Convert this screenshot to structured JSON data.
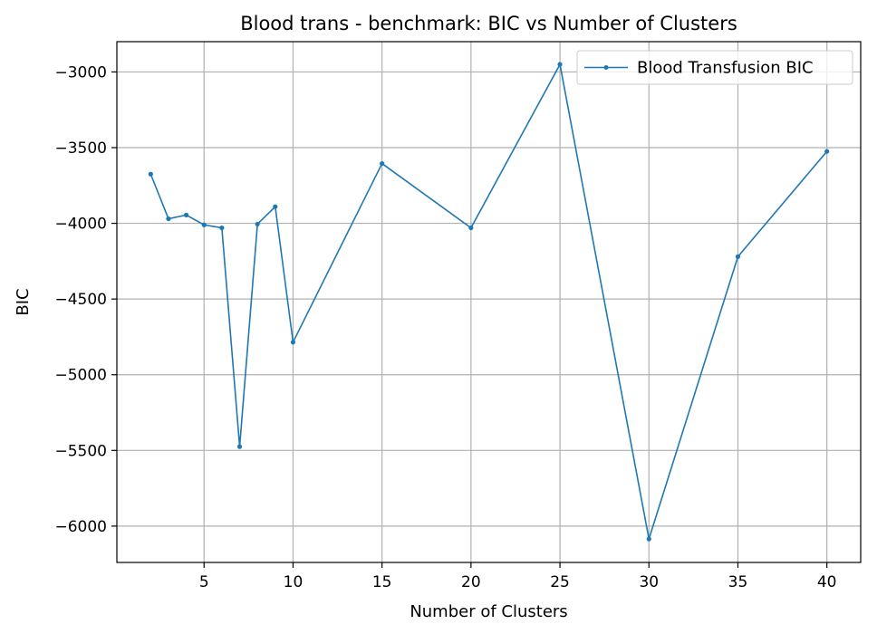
{
  "chart_data": {
    "type": "line",
    "title": "Blood trans - benchmark: BIC vs Number of Clusters",
    "xlabel": "Number of Clusters",
    "ylabel": "BIC",
    "xlim": [
      0.1,
      41.9
    ],
    "ylim": [
      -6240,
      -2800
    ],
    "grid": true,
    "legend_position": "top-right",
    "xticks": [
      5,
      10,
      15,
      20,
      25,
      30,
      35,
      40
    ],
    "xtick_labels": [
      "5",
      "10",
      "15",
      "20",
      "25",
      "30",
      "35",
      "40"
    ],
    "yticks": [
      -3000,
      -3500,
      -4000,
      -4500,
      -5000,
      -5500,
      -6000
    ],
    "ytick_labels": [
      "−3000",
      "−3500",
      "−4000",
      "−4500",
      "−5000",
      "−5500",
      "−6000"
    ],
    "series": [
      {
        "name": "Blood Transfusion BIC",
        "color": "#1f77b4",
        "x": [
          2,
          3,
          4,
          5,
          6,
          7,
          8,
          9,
          10,
          15,
          20,
          25,
          30,
          35,
          40
        ],
        "y": [
          -3675,
          -3970,
          -3945,
          -4010,
          -4030,
          -5475,
          -4005,
          -3890,
          -4785,
          -3605,
          -4030,
          -2950,
          -6085,
          -4220,
          -3525
        ]
      }
    ]
  }
}
